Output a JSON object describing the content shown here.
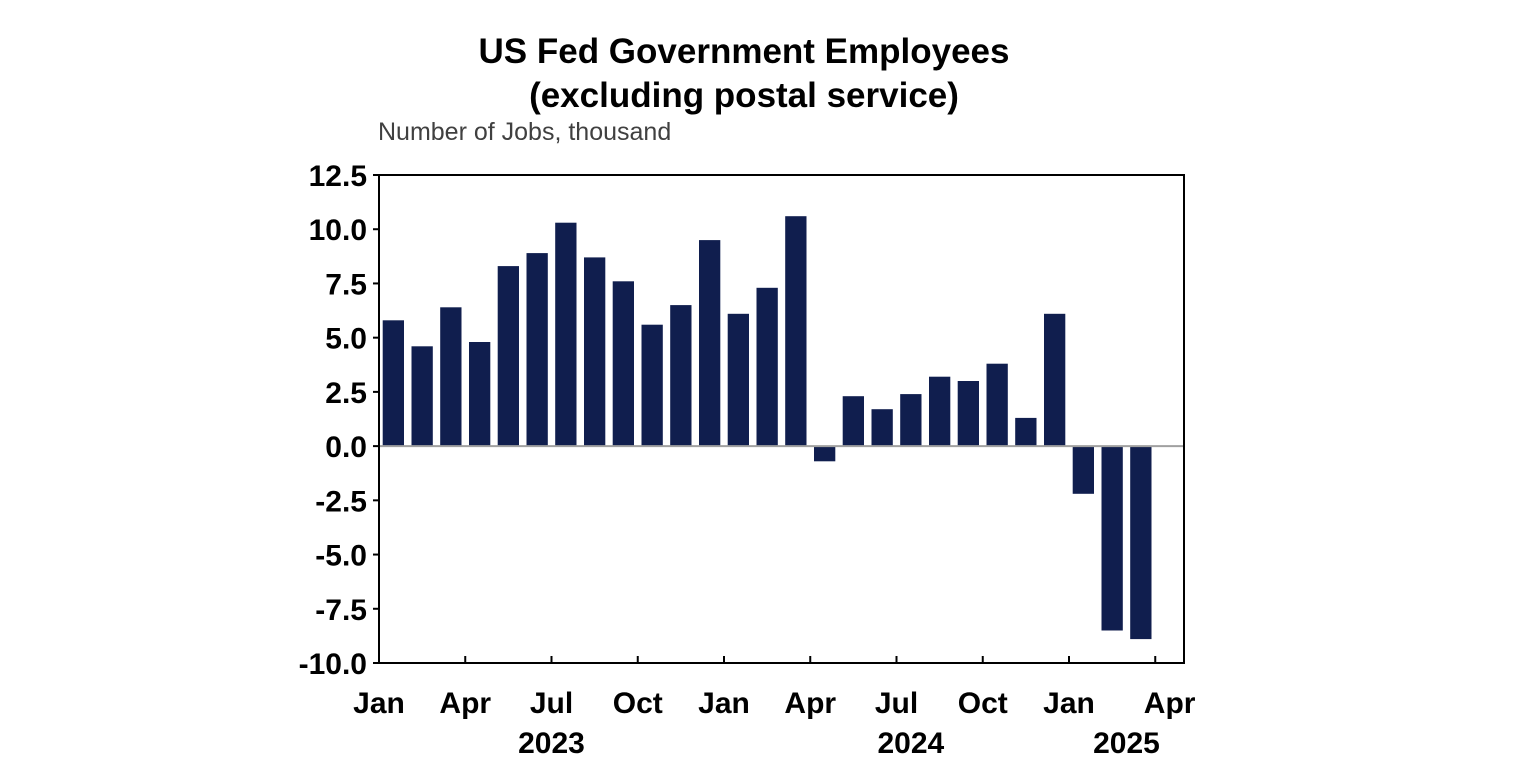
{
  "chart_data": {
    "type": "bar",
    "title_line1": "US Fed Government Employees",
    "title_line2": "(excluding postal service)",
    "subtitle": "Number of Jobs, thousand",
    "ylim": [
      -10,
      12.5
    ],
    "yticks": [
      "12.5",
      "10.0",
      "7.5",
      "5.0",
      "2.5",
      "0.0",
      "-2.5",
      "-5.0",
      "-7.5",
      "-10.0"
    ],
    "month_labels": [
      "Jan",
      "Apr",
      "Jul",
      "Oct",
      "Jan",
      "Apr",
      "Jul",
      "Oct",
      "Jan",
      "Apr"
    ],
    "year_labels": [
      "2023",
      "2024",
      "2025"
    ],
    "categories": [
      "2023-01",
      "2023-02",
      "2023-03",
      "2023-04",
      "2023-05",
      "2023-06",
      "2023-07",
      "2023-08",
      "2023-09",
      "2023-10",
      "2023-11",
      "2023-12",
      "2024-01",
      "2024-02",
      "2024-03",
      "2024-04",
      "2024-05",
      "2024-06",
      "2024-07",
      "2024-08",
      "2024-09",
      "2024-10",
      "2024-11",
      "2024-12",
      "2025-01",
      "2025-02",
      "2025-03",
      "2025-04"
    ],
    "values": [
      5.8,
      4.6,
      6.4,
      4.8,
      8.3,
      8.9,
      10.3,
      8.7,
      7.6,
      5.6,
      6.5,
      9.5,
      6.1,
      7.3,
      10.6,
      -0.7,
      2.3,
      1.7,
      2.4,
      3.2,
      3.0,
      3.8,
      1.3,
      6.1,
      -2.2,
      -8.5,
      -8.9,
      0
    ],
    "grid": false,
    "colors": {
      "bar": "#101e4e",
      "zero_line": "#a0a0a0",
      "axis": "#000000"
    }
  }
}
